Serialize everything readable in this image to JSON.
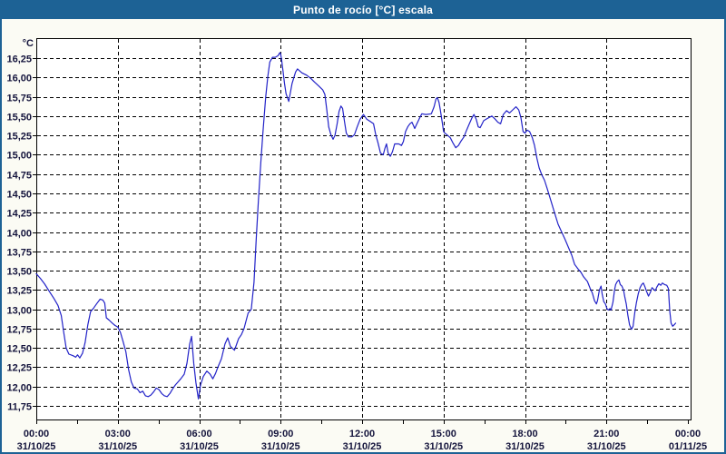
{
  "window": {
    "title": "Punto de rocío [°C] escala"
  },
  "colors": {
    "titlebar": "#1D6295",
    "frame": "#1D6295",
    "background": "#FBFBF4",
    "plot_background": "#FFFFFF",
    "grid": "#000000",
    "axis_text": "#14143C",
    "line": "#2222C8"
  },
  "chart_data": {
    "type": "line",
    "title": "Punto de rocío [°C] escala",
    "xlabel": "",
    "ylabel": "°C",
    "ylim": [
      11.75,
      16.25
    ],
    "y_step": 0.25,
    "xlim_hours": [
      0,
      24
    ],
    "grid": "dashed",
    "legend": "none",
    "y_ticks": [
      {
        "v": 16.25,
        "label": "16,25"
      },
      {
        "v": 16.0,
        "label": "16,00"
      },
      {
        "v": 15.75,
        "label": "15,75"
      },
      {
        "v": 15.5,
        "label": "15,50"
      },
      {
        "v": 15.25,
        "label": "15,25"
      },
      {
        "v": 15.0,
        "label": "15,00"
      },
      {
        "v": 14.75,
        "label": "14,75"
      },
      {
        "v": 14.5,
        "label": "14,50"
      },
      {
        "v": 14.25,
        "label": "14,25"
      },
      {
        "v": 14.0,
        "label": "14,00"
      },
      {
        "v": 13.75,
        "label": "13,75"
      },
      {
        "v": 13.5,
        "label": "13,50"
      },
      {
        "v": 13.25,
        "label": "13,25"
      },
      {
        "v": 13.0,
        "label": "13,00"
      },
      {
        "v": 12.75,
        "label": "12,75"
      },
      {
        "v": 12.5,
        "label": "12,50"
      },
      {
        "v": 12.25,
        "label": "12,25"
      },
      {
        "v": 12.0,
        "label": "12,00"
      },
      {
        "v": 11.75,
        "label": "11,75"
      }
    ],
    "x_ticks": [
      {
        "h": 0,
        "time": "00:00",
        "date": "31/10/25"
      },
      {
        "h": 3,
        "time": "03:00",
        "date": "31/10/25"
      },
      {
        "h": 6,
        "time": "06:00",
        "date": "31/10/25"
      },
      {
        "h": 9,
        "time": "09:00",
        "date": "31/10/25"
      },
      {
        "h": 12,
        "time": "12:00",
        "date": "31/10/25"
      },
      {
        "h": 15,
        "time": "15:00",
        "date": "31/10/25"
      },
      {
        "h": 18,
        "time": "18:00",
        "date": "31/10/25"
      },
      {
        "h": 21,
        "time": "21:00",
        "date": "31/10/25"
      },
      {
        "h": 24,
        "time": "00:00",
        "date": "01/11/25"
      }
    ],
    "x_grid_hours": [
      3,
      6,
      9,
      12,
      15,
      18,
      21
    ],
    "x_minor_step_h": 1.5,
    "series": [
      {
        "name": "Punto de rocío",
        "color": "#2222C8",
        "points": [
          [
            0,
            13.46
          ],
          [
            0.15,
            13.4
          ],
          [
            0.3,
            13.33
          ],
          [
            0.5,
            13.22
          ],
          [
            0.65,
            13.14
          ],
          [
            0.8,
            13.05
          ],
          [
            0.92,
            12.92
          ],
          [
            1.02,
            12.68
          ],
          [
            1.1,
            12.5
          ],
          [
            1.2,
            12.42
          ],
          [
            1.35,
            12.4
          ],
          [
            1.45,
            12.38
          ],
          [
            1.52,
            12.41
          ],
          [
            1.6,
            12.37
          ],
          [
            1.7,
            12.43
          ],
          [
            1.8,
            12.57
          ],
          [
            1.9,
            12.8
          ],
          [
            2,
            12.97
          ],
          [
            2.1,
            13.01
          ],
          [
            2.22,
            13.07
          ],
          [
            2.35,
            13.13
          ],
          [
            2.45,
            13.12
          ],
          [
            2.52,
            13.08
          ],
          [
            2.58,
            12.89
          ],
          [
            2.68,
            12.86
          ],
          [
            2.8,
            12.82
          ],
          [
            2.9,
            12.79
          ],
          [
            3,
            12.77
          ],
          [
            3.1,
            12.7
          ],
          [
            3.2,
            12.58
          ],
          [
            3.3,
            12.45
          ],
          [
            3.4,
            12.22
          ],
          [
            3.5,
            12.06
          ],
          [
            3.6,
            11.98
          ],
          [
            3.72,
            11.97
          ],
          [
            3.82,
            11.92
          ],
          [
            3.92,
            11.94
          ],
          [
            4.02,
            11.88
          ],
          [
            4.12,
            11.87
          ],
          [
            4.22,
            11.89
          ],
          [
            4.32,
            11.93
          ],
          [
            4.42,
            11.98
          ],
          [
            4.52,
            11.96
          ],
          [
            4.62,
            11.91
          ],
          [
            4.72,
            11.88
          ],
          [
            4.82,
            11.87
          ],
          [
            4.92,
            11.91
          ],
          [
            5.02,
            11.97
          ],
          [
            5.12,
            12.02
          ],
          [
            5.22,
            12.06
          ],
          [
            5.32,
            12.1
          ],
          [
            5.45,
            12.16
          ],
          [
            5.55,
            12.3
          ],
          [
            5.65,
            12.55
          ],
          [
            5.72,
            12.65
          ],
          [
            5.8,
            12.3
          ],
          [
            5.88,
            12.05
          ],
          [
            5.97,
            11.84
          ],
          [
            6.05,
            12.02
          ],
          [
            6.15,
            12.13
          ],
          [
            6.28,
            12.2
          ],
          [
            6.4,
            12.16
          ],
          [
            6.5,
            12.1
          ],
          [
            6.6,
            12.17
          ],
          [
            6.7,
            12.26
          ],
          [
            6.82,
            12.36
          ],
          [
            6.95,
            12.55
          ],
          [
            7.05,
            12.63
          ],
          [
            7.15,
            12.52
          ],
          [
            7.3,
            12.47
          ],
          [
            7.45,
            12.62
          ],
          [
            7.55,
            12.67
          ],
          [
            7.65,
            12.75
          ],
          [
            7.8,
            12.95
          ],
          [
            7.92,
            13
          ],
          [
            8.02,
            13.35
          ],
          [
            8.1,
            13.9
          ],
          [
            8.18,
            14.4
          ],
          [
            8.27,
            14.9
          ],
          [
            8.35,
            15.3
          ],
          [
            8.45,
            15.75
          ],
          [
            8.53,
            16.02
          ],
          [
            8.6,
            16.2
          ],
          [
            8.7,
            16.26
          ],
          [
            8.8,
            16.26
          ],
          [
            8.9,
            16.28
          ],
          [
            8.97,
            16.32
          ],
          [
            9,
            16.3
          ],
          [
            9.04,
            16.22
          ],
          [
            9.09,
            16.08
          ],
          [
            9.14,
            15.93
          ],
          [
            9.2,
            15.79
          ],
          [
            9.3,
            15.69
          ],
          [
            9.42,
            15.92
          ],
          [
            9.55,
            16.07
          ],
          [
            9.62,
            16.11
          ],
          [
            9.78,
            16.06
          ],
          [
            9.95,
            16.03
          ],
          [
            10.1,
            15.99
          ],
          [
            10.25,
            15.94
          ],
          [
            10.4,
            15.89
          ],
          [
            10.55,
            15.84
          ],
          [
            10.63,
            15.78
          ],
          [
            10.7,
            15.58
          ],
          [
            10.77,
            15.36
          ],
          [
            10.85,
            15.26
          ],
          [
            10.93,
            15.2
          ],
          [
            11,
            15.25
          ],
          [
            11.08,
            15.4
          ],
          [
            11.15,
            15.56
          ],
          [
            11.22,
            15.63
          ],
          [
            11.28,
            15.6
          ],
          [
            11.35,
            15.43
          ],
          [
            11.42,
            15.28
          ],
          [
            11.5,
            15.23
          ],
          [
            11.62,
            15.23
          ],
          [
            11.72,
            15.26
          ],
          [
            11.82,
            15.36
          ],
          [
            11.93,
            15.46
          ],
          [
            12.05,
            15.52
          ],
          [
            12.17,
            15.46
          ],
          [
            12.3,
            15.43
          ],
          [
            12.42,
            15.4
          ],
          [
            12.5,
            15.26
          ],
          [
            12.58,
            15.16
          ],
          [
            12.68,
            15.02
          ],
          [
            12.78,
            15
          ],
          [
            12.84,
            15.08
          ],
          [
            12.9,
            15.14
          ],
          [
            12.96,
            15.02
          ],
          [
            13.04,
            14.98
          ],
          [
            13.12,
            15.04
          ],
          [
            13.2,
            15.14
          ],
          [
            13.35,
            15.14
          ],
          [
            13.45,
            15.12
          ],
          [
            13.52,
            15.17
          ],
          [
            13.6,
            15.3
          ],
          [
            13.68,
            15.36
          ],
          [
            13.76,
            15.4
          ],
          [
            13.84,
            15.42
          ],
          [
            13.94,
            15.34
          ],
          [
            14.02,
            15.4
          ],
          [
            14.1,
            15.46
          ],
          [
            14.2,
            15.53
          ],
          [
            14.35,
            15.52
          ],
          [
            14.55,
            15.53
          ],
          [
            14.65,
            15.62
          ],
          [
            14.72,
            15.72
          ],
          [
            14.77,
            15.74
          ],
          [
            14.83,
            15.68
          ],
          [
            14.88,
            15.58
          ],
          [
            14.95,
            15.42
          ],
          [
            15,
            15.3
          ],
          [
            15.05,
            15.28
          ],
          [
            15.15,
            15.25
          ],
          [
            15.25,
            15.22
          ],
          [
            15.35,
            15.15
          ],
          [
            15.45,
            15.09
          ],
          [
            15.55,
            15.12
          ],
          [
            15.65,
            15.18
          ],
          [
            15.75,
            15.23
          ],
          [
            15.85,
            15.32
          ],
          [
            15.95,
            15.4
          ],
          [
            16.05,
            15.48
          ],
          [
            16.12,
            15.52
          ],
          [
            16.2,
            15.46
          ],
          [
            16.28,
            15.36
          ],
          [
            16.35,
            15.35
          ],
          [
            16.48,
            15.44
          ],
          [
            16.62,
            15.47
          ],
          [
            16.78,
            15.5
          ],
          [
            16.9,
            15.46
          ],
          [
            17,
            15.42
          ],
          [
            17.1,
            15.4
          ],
          [
            17.2,
            15.52
          ],
          [
            17.32,
            15.57
          ],
          [
            17.43,
            15.54
          ],
          [
            17.55,
            15.58
          ],
          [
            17.67,
            15.62
          ],
          [
            17.77,
            15.58
          ],
          [
            17.85,
            15.48
          ],
          [
            17.93,
            15.3
          ],
          [
            18,
            15.28
          ],
          [
            18.08,
            15.32
          ],
          [
            18.17,
            15.3
          ],
          [
            18.27,
            15.22
          ],
          [
            18.35,
            15.12
          ],
          [
            18.44,
            14.95
          ],
          [
            18.52,
            14.83
          ],
          [
            18.62,
            14.74
          ],
          [
            18.72,
            14.67
          ],
          [
            18.82,
            14.56
          ],
          [
            18.95,
            14.41
          ],
          [
            19.08,
            14.26
          ],
          [
            19.22,
            14.1
          ],
          [
            19.35,
            14
          ],
          [
            19.48,
            13.9
          ],
          [
            19.6,
            13.8
          ],
          [
            19.72,
            13.7
          ],
          [
            19.83,
            13.58
          ],
          [
            19.96,
            13.52
          ],
          [
            20.06,
            13.48
          ],
          [
            20.16,
            13.42
          ],
          [
            20.3,
            13.36
          ],
          [
            20.4,
            13.27
          ],
          [
            20.48,
            13.21
          ],
          [
            20.56,
            13.11
          ],
          [
            20.63,
            13.07
          ],
          [
            20.67,
            13.11
          ],
          [
            20.74,
            13.25
          ],
          [
            20.8,
            13.3
          ],
          [
            20.84,
            13.2
          ],
          [
            20.9,
            13.1
          ],
          [
            20.96,
            13.07
          ],
          [
            21.02,
            13.01
          ],
          [
            21.07,
            12.99
          ],
          [
            21.13,
            13.01
          ],
          [
            21.17,
            12.99
          ],
          [
            21.24,
            13.09
          ],
          [
            21.3,
            13.25
          ],
          [
            21.34,
            13.32
          ],
          [
            21.4,
            13.36
          ],
          [
            21.46,
            13.38
          ],
          [
            21.51,
            13.32
          ],
          [
            21.57,
            13.3
          ],
          [
            21.63,
            13.25
          ],
          [
            21.67,
            13.17
          ],
          [
            21.73,
            13.07
          ],
          [
            21.79,
            12.92
          ],
          [
            21.85,
            12.8
          ],
          [
            21.92,
            12.74
          ],
          [
            21.98,
            12.78
          ],
          [
            22.04,
            12.95
          ],
          [
            22.1,
            13.08
          ],
          [
            22.17,
            13.2
          ],
          [
            22.24,
            13.28
          ],
          [
            22.3,
            13.32
          ],
          [
            22.36,
            13.34
          ],
          [
            22.42,
            13.29
          ],
          [
            22.48,
            13.23
          ],
          [
            22.55,
            13.17
          ],
          [
            22.62,
            13.22
          ],
          [
            22.68,
            13.28
          ],
          [
            22.74,
            13.26
          ],
          [
            22.8,
            13.24
          ],
          [
            22.86,
            13.29
          ],
          [
            22.93,
            13.33
          ],
          [
            23,
            13.31
          ],
          [
            23.06,
            13.34
          ],
          [
            23.14,
            13.32
          ],
          [
            23.22,
            13.31
          ],
          [
            23.28,
            13.27
          ],
          [
            23.33,
            12.98
          ],
          [
            23.38,
            12.82
          ],
          [
            23.44,
            12.78
          ],
          [
            23.5,
            12.8
          ],
          [
            23.55,
            12.82
          ]
        ]
      }
    ]
  }
}
